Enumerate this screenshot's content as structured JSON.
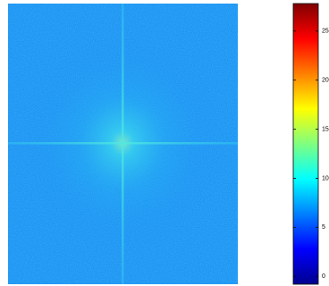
{
  "chart_data": {
    "type": "image",
    "colormap": "jet",
    "ylim": [
      -0.8,
      27.8
    ],
    "yticks": [
      0,
      5,
      10,
      15,
      20,
      25
    ]
  }
}
